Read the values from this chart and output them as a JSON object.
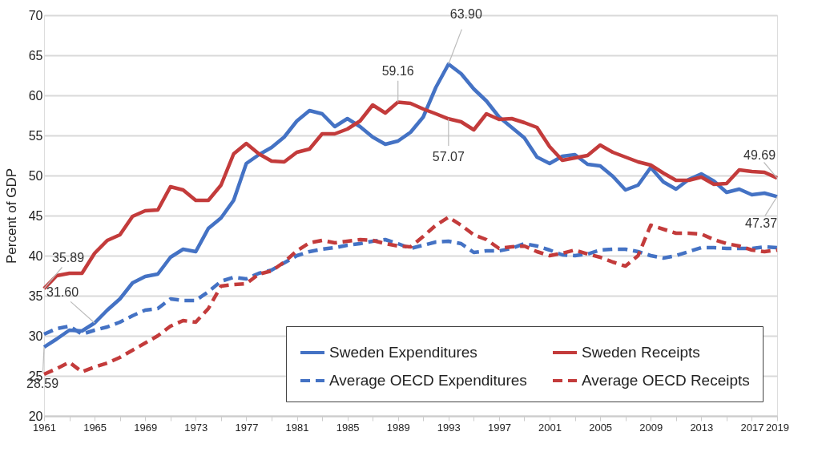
{
  "chart_data": {
    "type": "line",
    "ylabel": "Percent of GDP",
    "x": [
      1961,
      1962,
      1963,
      1964,
      1965,
      1966,
      1967,
      1968,
      1969,
      1970,
      1971,
      1972,
      1973,
      1974,
      1975,
      1976,
      1977,
      1978,
      1979,
      1980,
      1981,
      1982,
      1983,
      1984,
      1985,
      1986,
      1987,
      1988,
      1989,
      1990,
      1991,
      1992,
      1993,
      1994,
      1995,
      1996,
      1997,
      1998,
      1999,
      2000,
      2001,
      2002,
      2003,
      2004,
      2005,
      2006,
      2007,
      2008,
      2009,
      2010,
      2011,
      2012,
      2013,
      2014,
      2015,
      2016,
      2017,
      2018,
      2019
    ],
    "series": [
      {
        "name": "Sweden Expenditures",
        "color": "#4472c4",
        "line_style": "solid",
        "values": [
          28.59,
          29.6,
          30.7,
          30.6,
          31.6,
          33.2,
          34.6,
          36.6,
          37.4,
          37.7,
          39.8,
          40.8,
          40.5,
          43.4,
          44.7,
          46.9,
          51.5,
          52.6,
          53.5,
          54.8,
          56.8,
          58.1,
          57.7,
          56.1,
          57.1,
          56.1,
          54.8,
          53.9,
          54.3,
          55.4,
          57.3,
          61.0,
          63.9,
          62.7,
          60.8,
          59.3,
          57.3,
          56.0,
          54.7,
          52.3,
          51.5,
          52.4,
          52.6,
          51.4,
          51.2,
          49.9,
          48.2,
          48.8,
          51.0,
          49.2,
          48.3,
          49.5,
          50.2,
          49.3,
          47.9,
          48.3,
          47.6,
          47.8,
          47.37
        ]
      },
      {
        "name": "Average OECD Expenditures",
        "color": "#4472c4",
        "line_style": "dashed",
        "values": [
          30.2,
          30.9,
          31.2,
          30.2,
          30.7,
          31.1,
          31.7,
          32.5,
          33.2,
          33.4,
          34.6,
          34.4,
          34.4,
          35.5,
          36.8,
          37.3,
          37.1,
          37.8,
          38.2,
          39.1,
          40.0,
          40.5,
          40.8,
          41.0,
          41.3,
          41.5,
          41.8,
          42.0,
          41.5,
          40.9,
          41.3,
          41.7,
          41.8,
          41.5,
          40.4,
          40.6,
          40.6,
          40.9,
          41.5,
          41.2,
          40.7,
          40.1,
          40.0,
          40.2,
          40.7,
          40.8,
          40.8,
          40.5,
          40.0,
          39.7,
          40.0,
          40.5,
          41.0,
          41.0,
          40.9,
          40.9,
          40.9,
          41.1,
          41.0
        ]
      },
      {
        "name": "Sweden Receipts",
        "color": "#c33b3b",
        "line_style": "solid",
        "values": [
          35.89,
          37.5,
          37.8,
          37.8,
          40.3,
          41.9,
          42.6,
          44.9,
          45.6,
          45.7,
          48.6,
          48.2,
          46.9,
          46.9,
          48.8,
          52.7,
          54.0,
          52.7,
          51.8,
          51.7,
          52.9,
          53.3,
          55.2,
          55.2,
          55.8,
          56.8,
          58.8,
          57.8,
          59.16,
          59.0,
          58.3,
          57.7,
          57.07,
          56.7,
          55.7,
          57.7,
          57.0,
          57.1,
          56.6,
          56.0,
          53.6,
          51.9,
          52.2,
          52.5,
          53.8,
          52.9,
          52.3,
          51.7,
          51.3,
          50.3,
          49.4,
          49.4,
          49.8,
          48.9,
          49.0,
          50.7,
          50.5,
          50.4,
          49.69
        ]
      },
      {
        "name": "Average OECD Receipts",
        "color": "#c33b3b",
        "line_style": "dashed",
        "values": [
          25.2,
          25.9,
          26.7,
          25.5,
          26.1,
          26.6,
          27.3,
          28.2,
          29.1,
          30.0,
          31.2,
          31.9,
          31.7,
          33.4,
          36.2,
          36.4,
          36.5,
          37.7,
          38.1,
          39.2,
          40.6,
          41.6,
          41.9,
          41.6,
          41.8,
          42.0,
          41.9,
          41.5,
          41.2,
          41.1,
          42.4,
          43.8,
          44.8,
          43.8,
          42.6,
          42.0,
          40.9,
          41.1,
          41.2,
          40.5,
          40.0,
          40.3,
          40.7,
          40.2,
          39.8,
          39.2,
          38.7,
          40.0,
          43.8,
          43.3,
          42.8,
          42.8,
          42.7,
          42.0,
          41.5,
          41.2,
          40.7,
          40.5,
          40.7
        ]
      }
    ],
    "xlim": [
      1961,
      2019
    ],
    "xticks": [
      1961,
      {
        "value": 1963,
        "label": null
      },
      1965,
      {
        "value": 1967,
        "label": null
      },
      1969,
      {
        "value": 1971,
        "label": null
      },
      1973,
      {
        "value": 1975,
        "label": null
      },
      1977,
      {
        "value": 1979,
        "label": null
      },
      1981,
      {
        "value": 1983,
        "label": null
      },
      1985,
      {
        "value": 1987,
        "label": null
      },
      1989,
      {
        "value": 1991,
        "label": null
      },
      1993,
      {
        "value": 1995,
        "label": null
      },
      1997,
      {
        "value": 1999,
        "label": null
      },
      2001,
      {
        "value": 2003,
        "label": null
      },
      2005,
      {
        "value": 2007,
        "label": null
      },
      2009,
      {
        "value": 2011,
        "label": null
      },
      2013,
      {
        "value": 2015,
        "label": null
      },
      2017,
      2019
    ],
    "ylim": [
      20,
      70
    ],
    "yticks": [
      20,
      25,
      30,
      35,
      40,
      45,
      50,
      55,
      60,
      65,
      70
    ],
    "grid": "y",
    "legend": "bottom right",
    "marker": "none",
    "annotations": [
      {
        "text": "35.89",
        "x": 1961,
        "y": 35.89
      },
      {
        "text": "28.59",
        "x": 1961,
        "y": 28.59
      },
      {
        "text": "31.60",
        "x": 1965,
        "y": 31.6
      },
      {
        "text": "63.90",
        "x": 1993,
        "y": 63.9
      },
      {
        "text": "59.16",
        "x": 1989,
        "y": 59.16
      },
      {
        "text": "57.07",
        "x": 1993,
        "y": 57.07
      },
      {
        "text": "49.69",
        "x": 2019,
        "y": 49.69
      },
      {
        "text": "47.37",
        "x": 2019,
        "y": 47.37
      }
    ]
  }
}
